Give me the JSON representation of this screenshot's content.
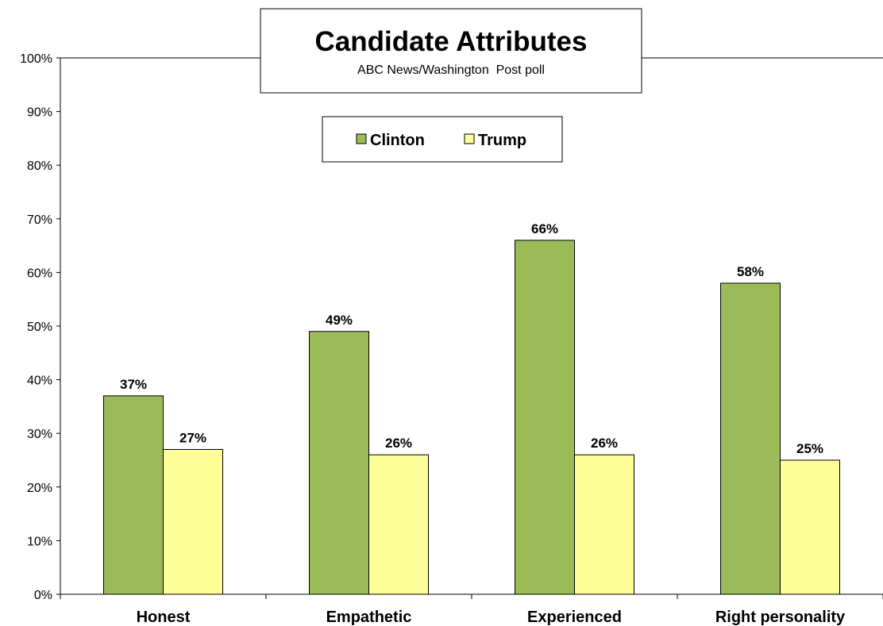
{
  "chart_data": {
    "type": "bar",
    "title": "Candidate Attributes",
    "subtitle": "ABC News/Washington  Post poll",
    "categories": [
      "Honest",
      "Empathetic",
      "Experienced",
      "Right personality"
    ],
    "series": [
      {
        "name": "Clinton",
        "color": "#9bbb59",
        "values": [
          37,
          49,
          66,
          58
        ]
      },
      {
        "name": "Trump",
        "color": "#ffff99",
        "values": [
          27,
          26,
          26,
          25
        ]
      }
    ],
    "data_labels": [
      [
        "37%",
        "49%",
        "66%",
        "58%"
      ],
      [
        "27%",
        "26%",
        "26%",
        "25%"
      ]
    ],
    "ylim": [
      0,
      100
    ],
    "yticks": [
      "0%",
      "10%",
      "20%",
      "30%",
      "40%",
      "50%",
      "60%",
      "70%",
      "80%",
      "90%",
      "100%"
    ],
    "xlabel": "",
    "ylabel": "",
    "legend": "top-center",
    "grid": false
  }
}
